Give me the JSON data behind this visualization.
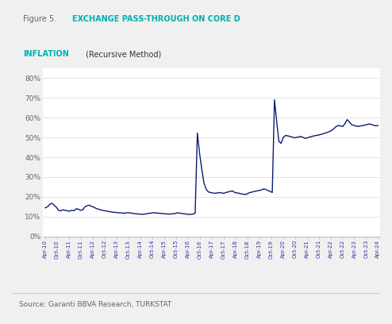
{
  "title_fig_prefix": "Figure 5. ",
  "title_bold_part": "EXCHANGE PASS-THROUGH ON CORE D",
  "title_bold_part2": "INFLATION",
  "title_normal_part": " (Recursive Method)",
  "source": "Source: Garanti BBVA Research, TURKSTAT",
  "line_color": "#0d1b6e",
  "line_width": 1.0,
  "figure_bg": "#f0f0f0",
  "title_box_bg": "#e4e4e4",
  "plot_bg": "#ffffff",
  "teal_color": "#00b0b0",
  "gray_text": "#666666",
  "dark_text": "#333333",
  "blue_tick": "#3333aa",
  "ylim": [
    0.0,
    0.85
  ],
  "yticks": [
    0.0,
    0.1,
    0.2,
    0.3,
    0.4,
    0.5,
    0.6,
    0.7,
    0.8
  ],
  "ytick_labels": [
    "0%",
    "10%",
    "20%",
    "30%",
    "40%",
    "50%",
    "60%",
    "70%",
    "80%"
  ],
  "x_labels": [
    "Apr-10",
    "Oct-10",
    "Apr-11",
    "Oct-11",
    "Apr-12",
    "Oct-12",
    "Apr-13",
    "Oct-13",
    "Apr-14",
    "Oct-14",
    "Apr-15",
    "Oct-15",
    "Apr-16",
    "Oct-16",
    "Apr-17",
    "Oct-17",
    "Apr-18",
    "Oct-18",
    "Apr-19",
    "Oct-19",
    "Apr-20",
    "Oct-20",
    "Apr-21",
    "Oct-21",
    "Apr-22",
    "Oct-22",
    "Apr-23",
    "Oct-23",
    "Apr-24"
  ],
  "series": [
    0.145,
    0.15,
    0.162,
    0.168,
    0.158,
    0.148,
    0.132,
    0.13,
    0.135,
    0.132,
    0.13,
    0.128,
    0.132,
    0.13,
    0.14,
    0.138,
    0.132,
    0.135,
    0.15,
    0.155,
    0.158,
    0.152,
    0.148,
    0.142,
    0.138,
    0.135,
    0.132,
    0.13,
    0.128,
    0.126,
    0.124,
    0.122,
    0.122,
    0.12,
    0.12,
    0.118,
    0.118,
    0.12,
    0.12,
    0.118,
    0.116,
    0.115,
    0.114,
    0.113,
    0.112,
    0.113,
    0.115,
    0.117,
    0.118,
    0.12,
    0.119,
    0.118,
    0.117,
    0.116,
    0.115,
    0.114,
    0.113,
    0.114,
    0.115,
    0.116,
    0.12,
    0.118,
    0.116,
    0.115,
    0.113,
    0.112,
    0.112,
    0.113,
    0.118,
    0.522,
    0.42,
    0.34,
    0.27,
    0.238,
    0.225,
    0.222,
    0.22,
    0.218,
    0.22,
    0.222,
    0.22,
    0.218,
    0.222,
    0.225,
    0.228,
    0.23,
    0.222,
    0.22,
    0.218,
    0.215,
    0.213,
    0.212,
    0.218,
    0.222,
    0.225,
    0.228,
    0.23,
    0.232,
    0.235,
    0.24,
    0.238,
    0.232,
    0.228,
    0.222,
    0.69,
    0.58,
    0.48,
    0.47,
    0.5,
    0.51,
    0.508,
    0.505,
    0.502,
    0.498,
    0.5,
    0.502,
    0.505,
    0.5,
    0.495,
    0.498,
    0.502,
    0.505,
    0.508,
    0.51,
    0.512,
    0.515,
    0.518,
    0.522,
    0.525,
    0.53,
    0.535,
    0.545,
    0.555,
    0.56,
    0.558,
    0.555,
    0.57,
    0.59,
    0.578,
    0.565,
    0.56,
    0.558,
    0.555,
    0.558,
    0.56,
    0.562,
    0.565,
    0.568,
    0.565,
    0.562,
    0.558,
    0.56
  ]
}
